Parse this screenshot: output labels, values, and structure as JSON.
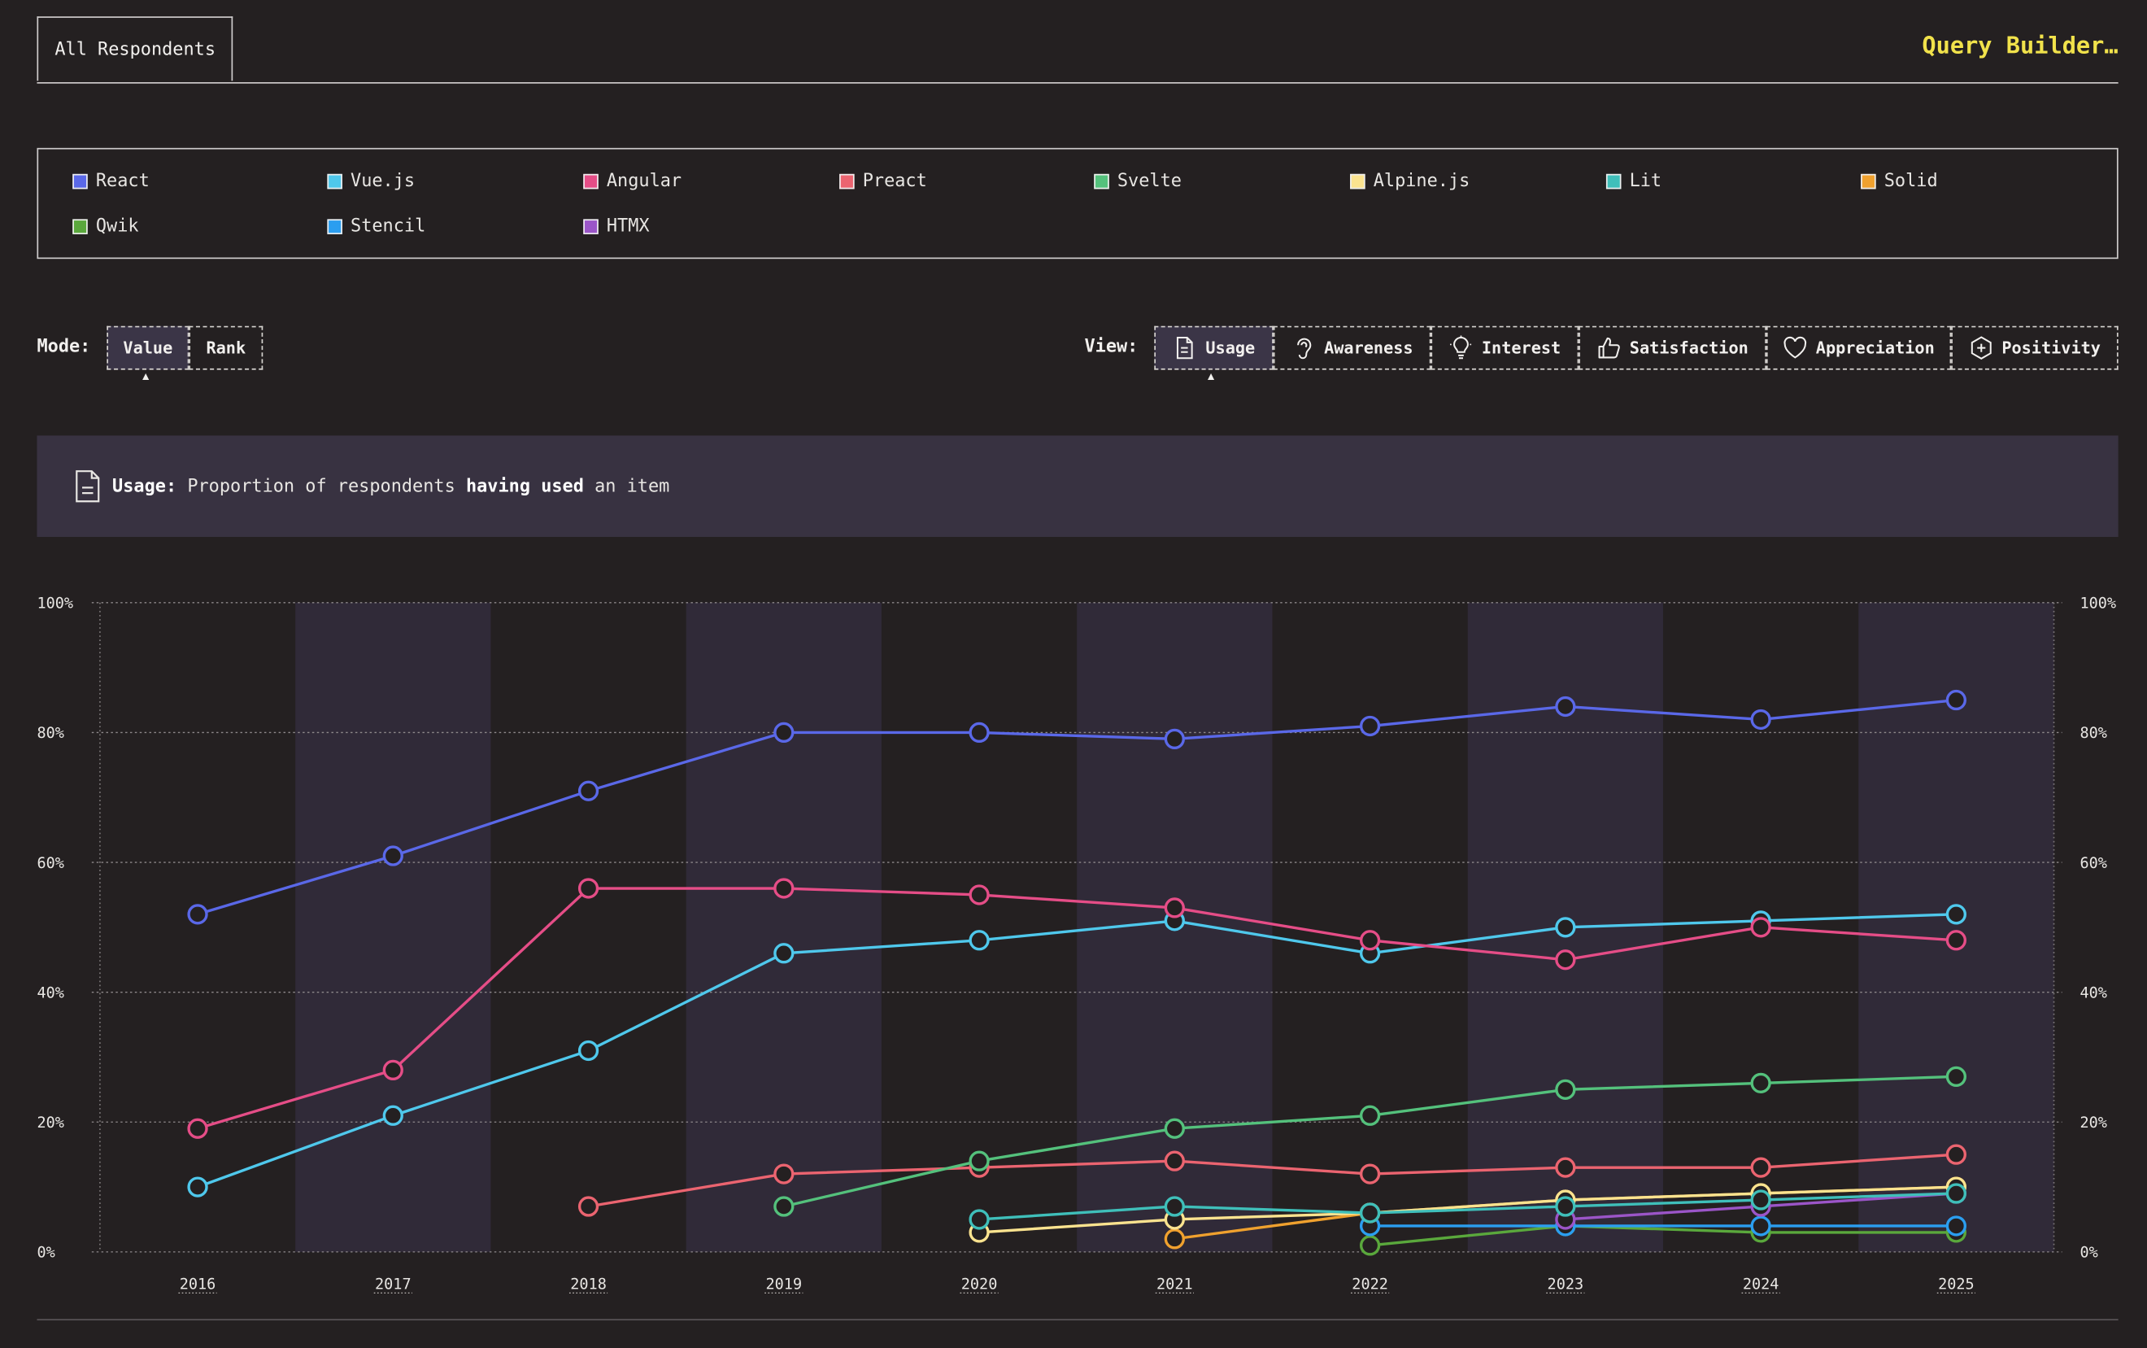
{
  "top": {
    "tab_label": "All Respondents",
    "query_builder_label": "Query Builder…"
  },
  "legend": {
    "items": [
      {
        "label": "React",
        "color": "#5a68e8"
      },
      {
        "label": "Vue.js",
        "color": "#4fc8ec"
      },
      {
        "label": "Angular",
        "color": "#e54d87"
      },
      {
        "label": "Preact",
        "color": "#eb6470"
      },
      {
        "label": "Svelte",
        "color": "#54c17c"
      },
      {
        "label": "Alpine.js",
        "color": "#fbe38f"
      },
      {
        "label": "Lit",
        "color": "#3fbfba"
      },
      {
        "label": "Solid",
        "color": "#f0a12e"
      },
      {
        "label": "Qwik",
        "color": "#5aa83c"
      },
      {
        "label": "Stencil",
        "color": "#2b9ef0"
      },
      {
        "label": "HTMX",
        "color": "#9b55c8"
      }
    ]
  },
  "mode": {
    "label": "Mode:",
    "options": [
      {
        "label": "Value",
        "active": true
      },
      {
        "label": "Rank",
        "active": false
      }
    ]
  },
  "view": {
    "label": "View:",
    "options": [
      {
        "label": "Usage",
        "icon": "document-icon",
        "active": true
      },
      {
        "label": "Awareness",
        "icon": "ear-icon",
        "active": false
      },
      {
        "label": "Interest",
        "icon": "lightbulb-icon",
        "active": false
      },
      {
        "label": "Satisfaction",
        "icon": "thumbs-up-icon",
        "active": false
      },
      {
        "label": "Appreciation",
        "icon": "heart-icon",
        "active": false
      },
      {
        "label": "Positivity",
        "icon": "plus-circle-icon",
        "active": false
      }
    ]
  },
  "description": {
    "term": "Usage:",
    "text_before": "Proportion of respondents",
    "emphasis": "having used",
    "text_after": "an item"
  },
  "chart_data": {
    "type": "line",
    "x": [
      2016,
      2017,
      2018,
      2019,
      2020,
      2021,
      2022,
      2023,
      2024,
      2025
    ],
    "ylim": [
      0,
      100
    ],
    "y_ticks": [
      "0%",
      "20%",
      "40%",
      "60%",
      "80%",
      "100%"
    ],
    "grid": true,
    "alternating_year_bands": true,
    "series": [
      {
        "name": "React",
        "color": "#5a68e8",
        "values": [
          52,
          61,
          71,
          80,
          80,
          79,
          81,
          84,
          82,
          85
        ]
      },
      {
        "name": "Angular",
        "color": "#e54d87",
        "values": [
          19,
          28,
          56,
          56,
          55,
          53,
          48,
          45,
          50,
          48
        ]
      },
      {
        "name": "Vue.js",
        "color": "#4fc8ec",
        "values": [
          10,
          21,
          31,
          46,
          48,
          51,
          46,
          50,
          51,
          52
        ]
      },
      {
        "name": "Svelte",
        "color": "#54c17c",
        "values": [
          null,
          null,
          null,
          7,
          14,
          19,
          21,
          25,
          26,
          27
        ]
      },
      {
        "name": "Preact",
        "color": "#eb6470",
        "values": [
          null,
          null,
          7,
          12,
          13,
          14,
          12,
          13,
          13,
          15
        ]
      },
      {
        "name": "Lit",
        "color": "#3fbfba",
        "values": [
          null,
          null,
          null,
          null,
          5,
          7,
          6,
          7,
          8,
          9
        ]
      },
      {
        "name": "Alpine.js",
        "color": "#fbe38f",
        "values": [
          null,
          null,
          null,
          null,
          3,
          5,
          6,
          8,
          9,
          10
        ]
      },
      {
        "name": "Solid",
        "color": "#f0a12e",
        "values": [
          null,
          null,
          null,
          null,
          null,
          2,
          6,
          8,
          9,
          10
        ]
      },
      {
        "name": "HTMX",
        "color": "#9b55c8",
        "values": [
          null,
          null,
          null,
          null,
          null,
          null,
          null,
          5,
          7,
          9
        ]
      },
      {
        "name": "Stencil",
        "color": "#2b9ef0",
        "values": [
          null,
          null,
          null,
          null,
          null,
          null,
          4,
          4,
          4,
          4
        ]
      },
      {
        "name": "Qwik",
        "color": "#5aa83c",
        "values": [
          null,
          null,
          null,
          null,
          null,
          null,
          1,
          4,
          3,
          3
        ]
      }
    ]
  }
}
